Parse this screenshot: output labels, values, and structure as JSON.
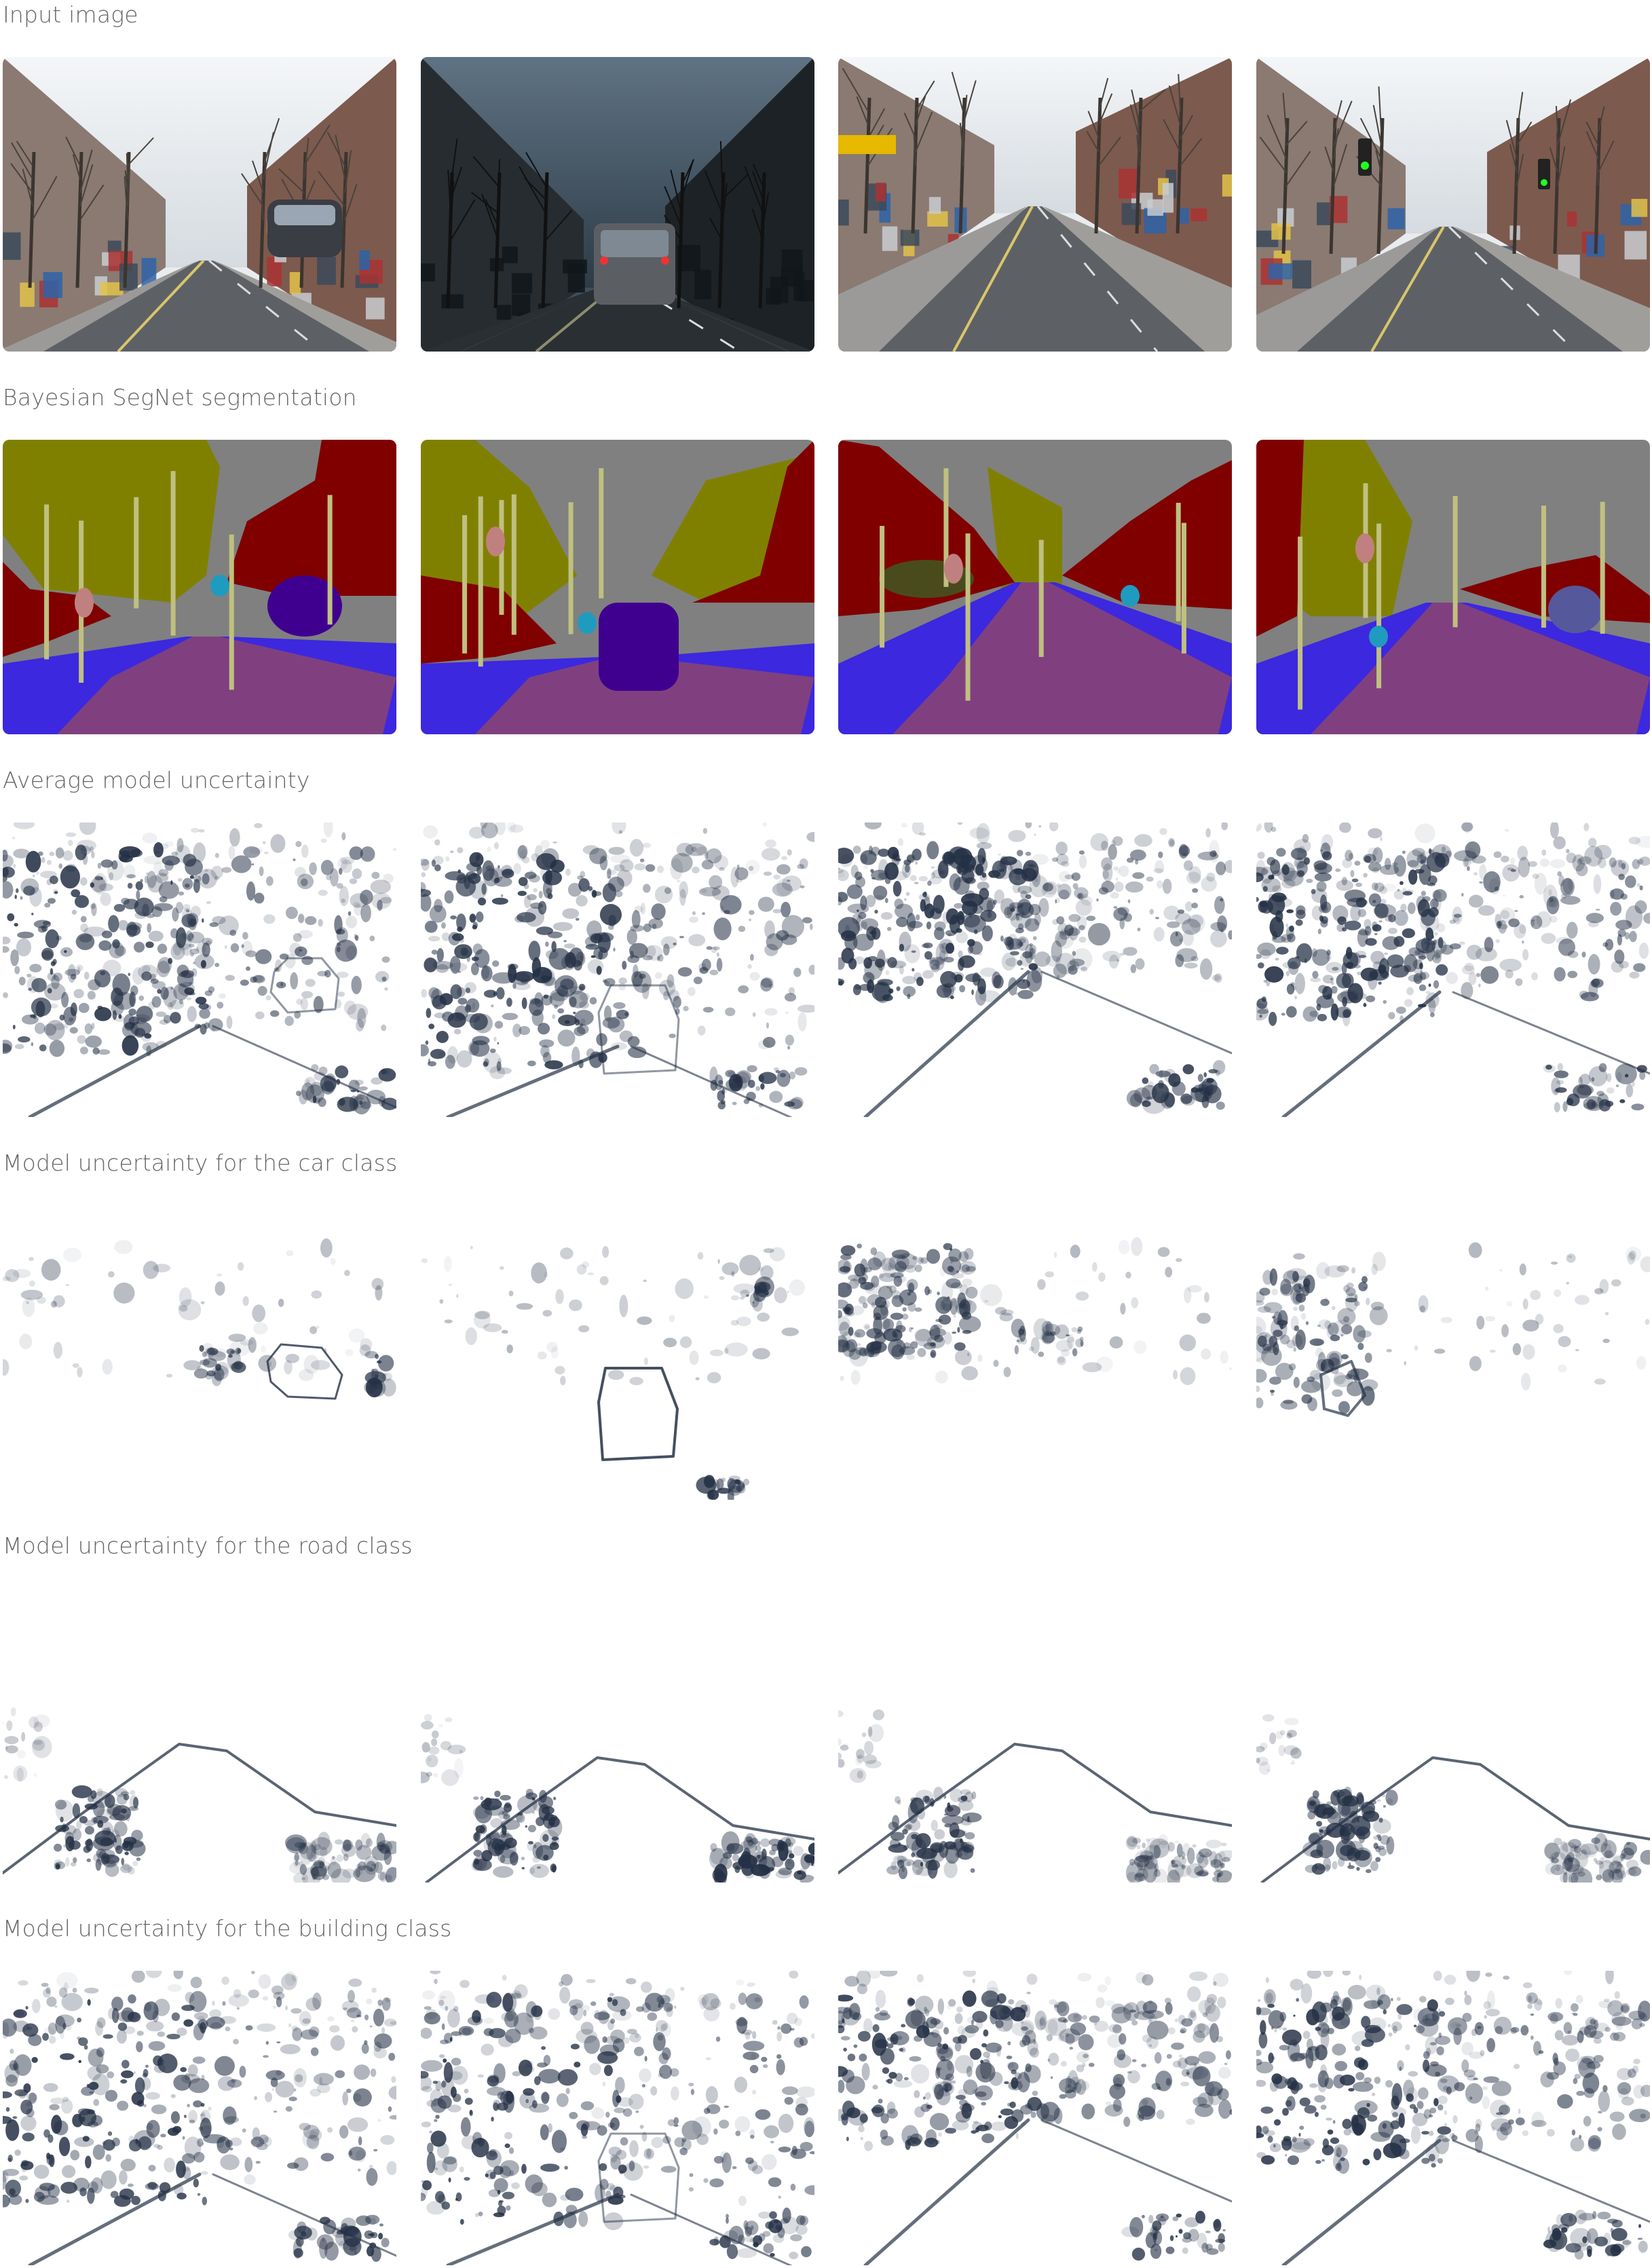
{
  "rows": [
    {
      "label": "Input image",
      "kind": "photo"
    },
    {
      "label": "Bayesian SegNet segmentation",
      "kind": "segmentation"
    },
    {
      "label": "Average model uncertainty",
      "kind": "uncertainty-average"
    },
    {
      "label": "Model uncertainty for the car class",
      "kind": "uncertainty-car"
    },
    {
      "label": "Model uncertainty for the road class",
      "kind": "uncertainty-road"
    },
    {
      "label": "Model uncertainty for the building class",
      "kind": "uncertainty-building"
    }
  ],
  "columns": 4,
  "colors": {
    "label": "#666666",
    "sky": "#808080",
    "building": "#800000",
    "tree": "#808000",
    "road": "#804080",
    "pavement": "#3c28de",
    "car": "#40008f",
    "pole": "#c0c080",
    "pedestrian": "#c08080",
    "sign": "#1f9bc0",
    "uncertainty_ink": "#243045"
  }
}
